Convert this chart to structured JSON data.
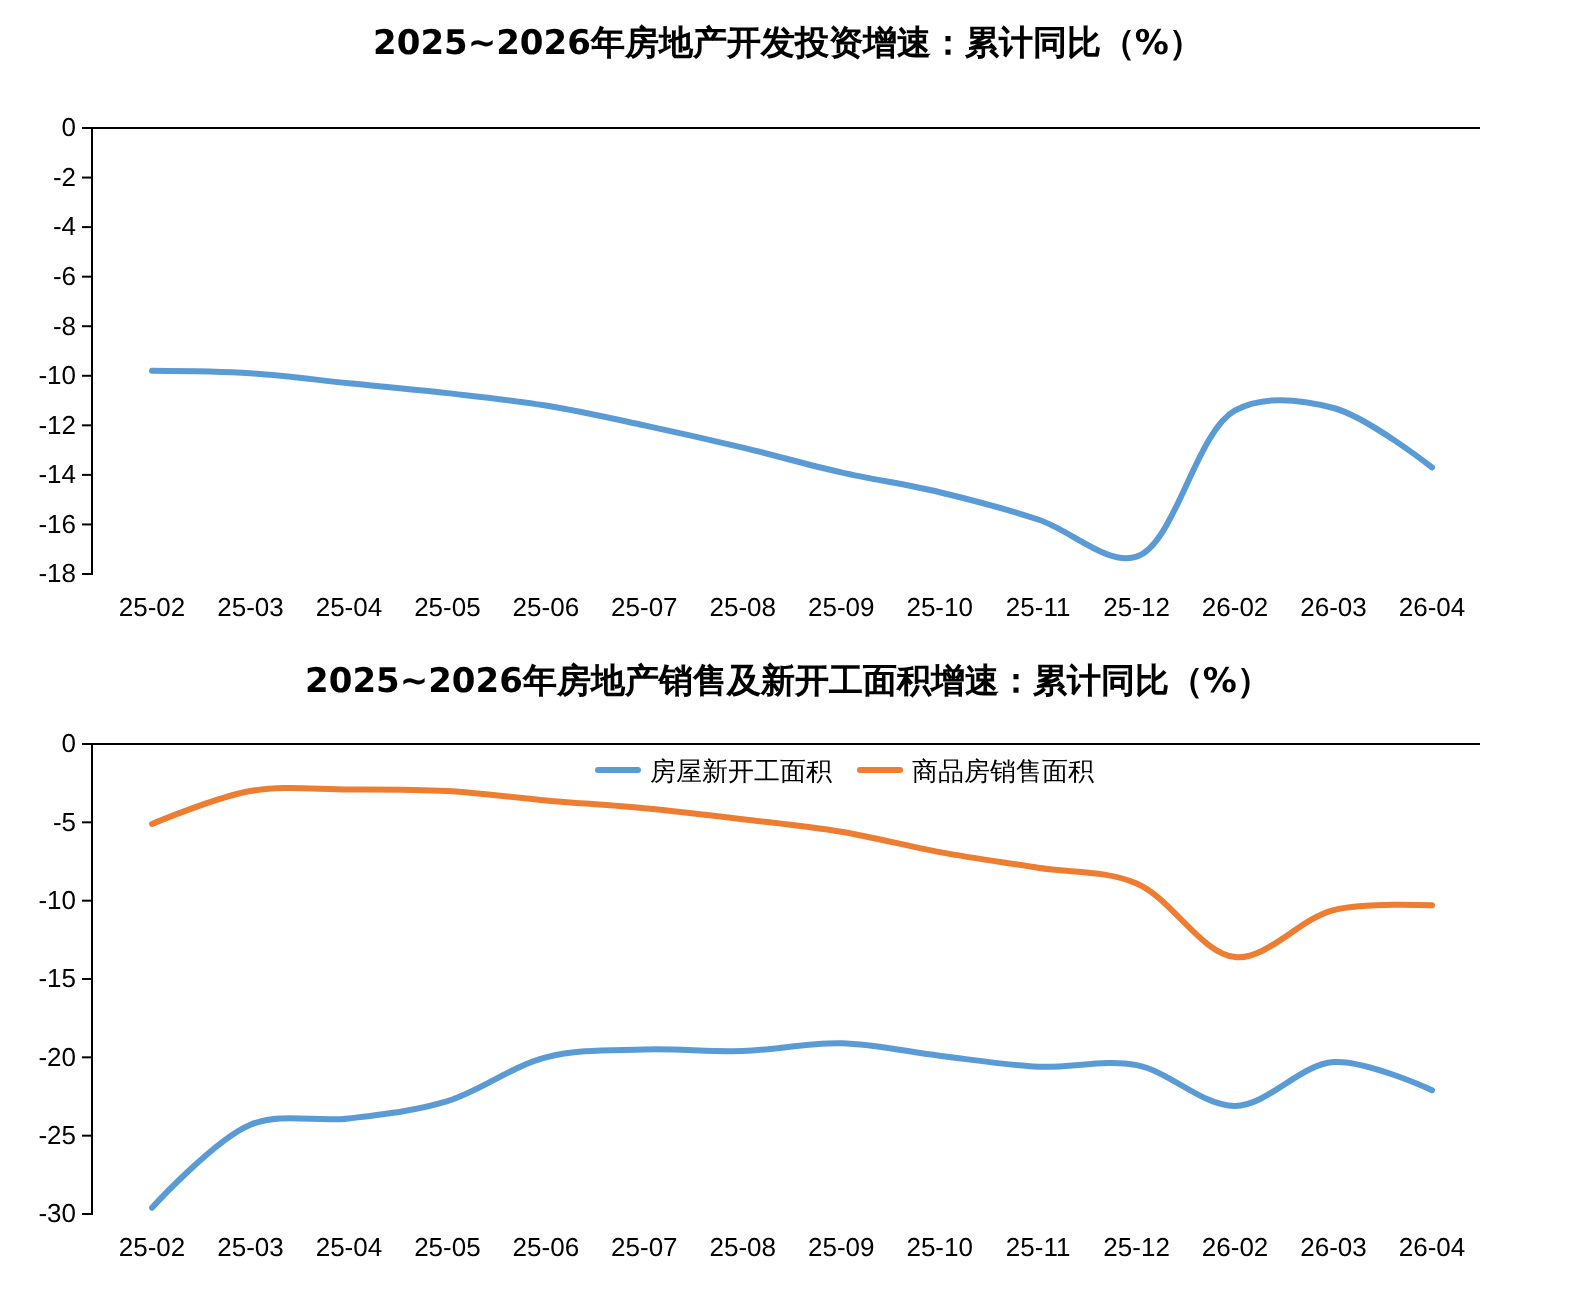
{
  "chart_data": [
    {
      "type": "line",
      "title": "2025~2026年房地产开发投资增速：累计同比（%）",
      "categories": [
        "25-02",
        "25-03",
        "25-04",
        "25-05",
        "25-06",
        "25-07",
        "25-08",
        "25-09",
        "25-10",
        "25-11",
        "25-12",
        "26-02",
        "26-03",
        "26-04"
      ],
      "series": [
        {
          "color": "#5b9bd5",
          "values": [
            -9.8,
            -9.9,
            -10.3,
            -10.7,
            -11.2,
            -12.0,
            -12.9,
            -13.9,
            -14.7,
            -15.8,
            -17.3,
            -11.4,
            -11.3,
            -13.7
          ]
        }
      ],
      "ylim": [
        -18,
        0
      ],
      "yticks": [
        0,
        -2,
        -4,
        -6,
        -8,
        -10,
        -12,
        -14,
        -16,
        -18
      ],
      "grid": false,
      "legend": false
    },
    {
      "type": "line",
      "title": "2025~2026年房地产销售及新开工面积增速：累计同比（%）",
      "categories": [
        "25-02",
        "25-03",
        "25-04",
        "25-05",
        "25-06",
        "25-07",
        "25-08",
        "25-09",
        "25-10",
        "25-11",
        "25-12",
        "26-02",
        "26-03",
        "26-04"
      ],
      "series": [
        {
          "name": "房屋新开工面积",
          "color": "#5b9bd5",
          "values": [
            -29.6,
            -24.3,
            -23.9,
            -22.8,
            -20.0,
            -19.5,
            -19.6,
            -19.1,
            -19.9,
            -20.6,
            -20.5,
            -23.1,
            -20.3,
            -22.1
          ]
        },
        {
          "name": "商品房销售面积",
          "color": "#ed7d31",
          "values": [
            -5.1,
            -3.0,
            -2.9,
            -3.0,
            -3.6,
            -4.1,
            -4.8,
            -5.6,
            -6.9,
            -7.9,
            -8.9,
            -13.6,
            -10.6,
            -10.3
          ]
        }
      ],
      "ylim": [
        -30,
        0
      ],
      "yticks": [
        0,
        -5,
        -10,
        -15,
        -20,
        -25,
        -30
      ],
      "grid": false,
      "legend": "top"
    }
  ]
}
